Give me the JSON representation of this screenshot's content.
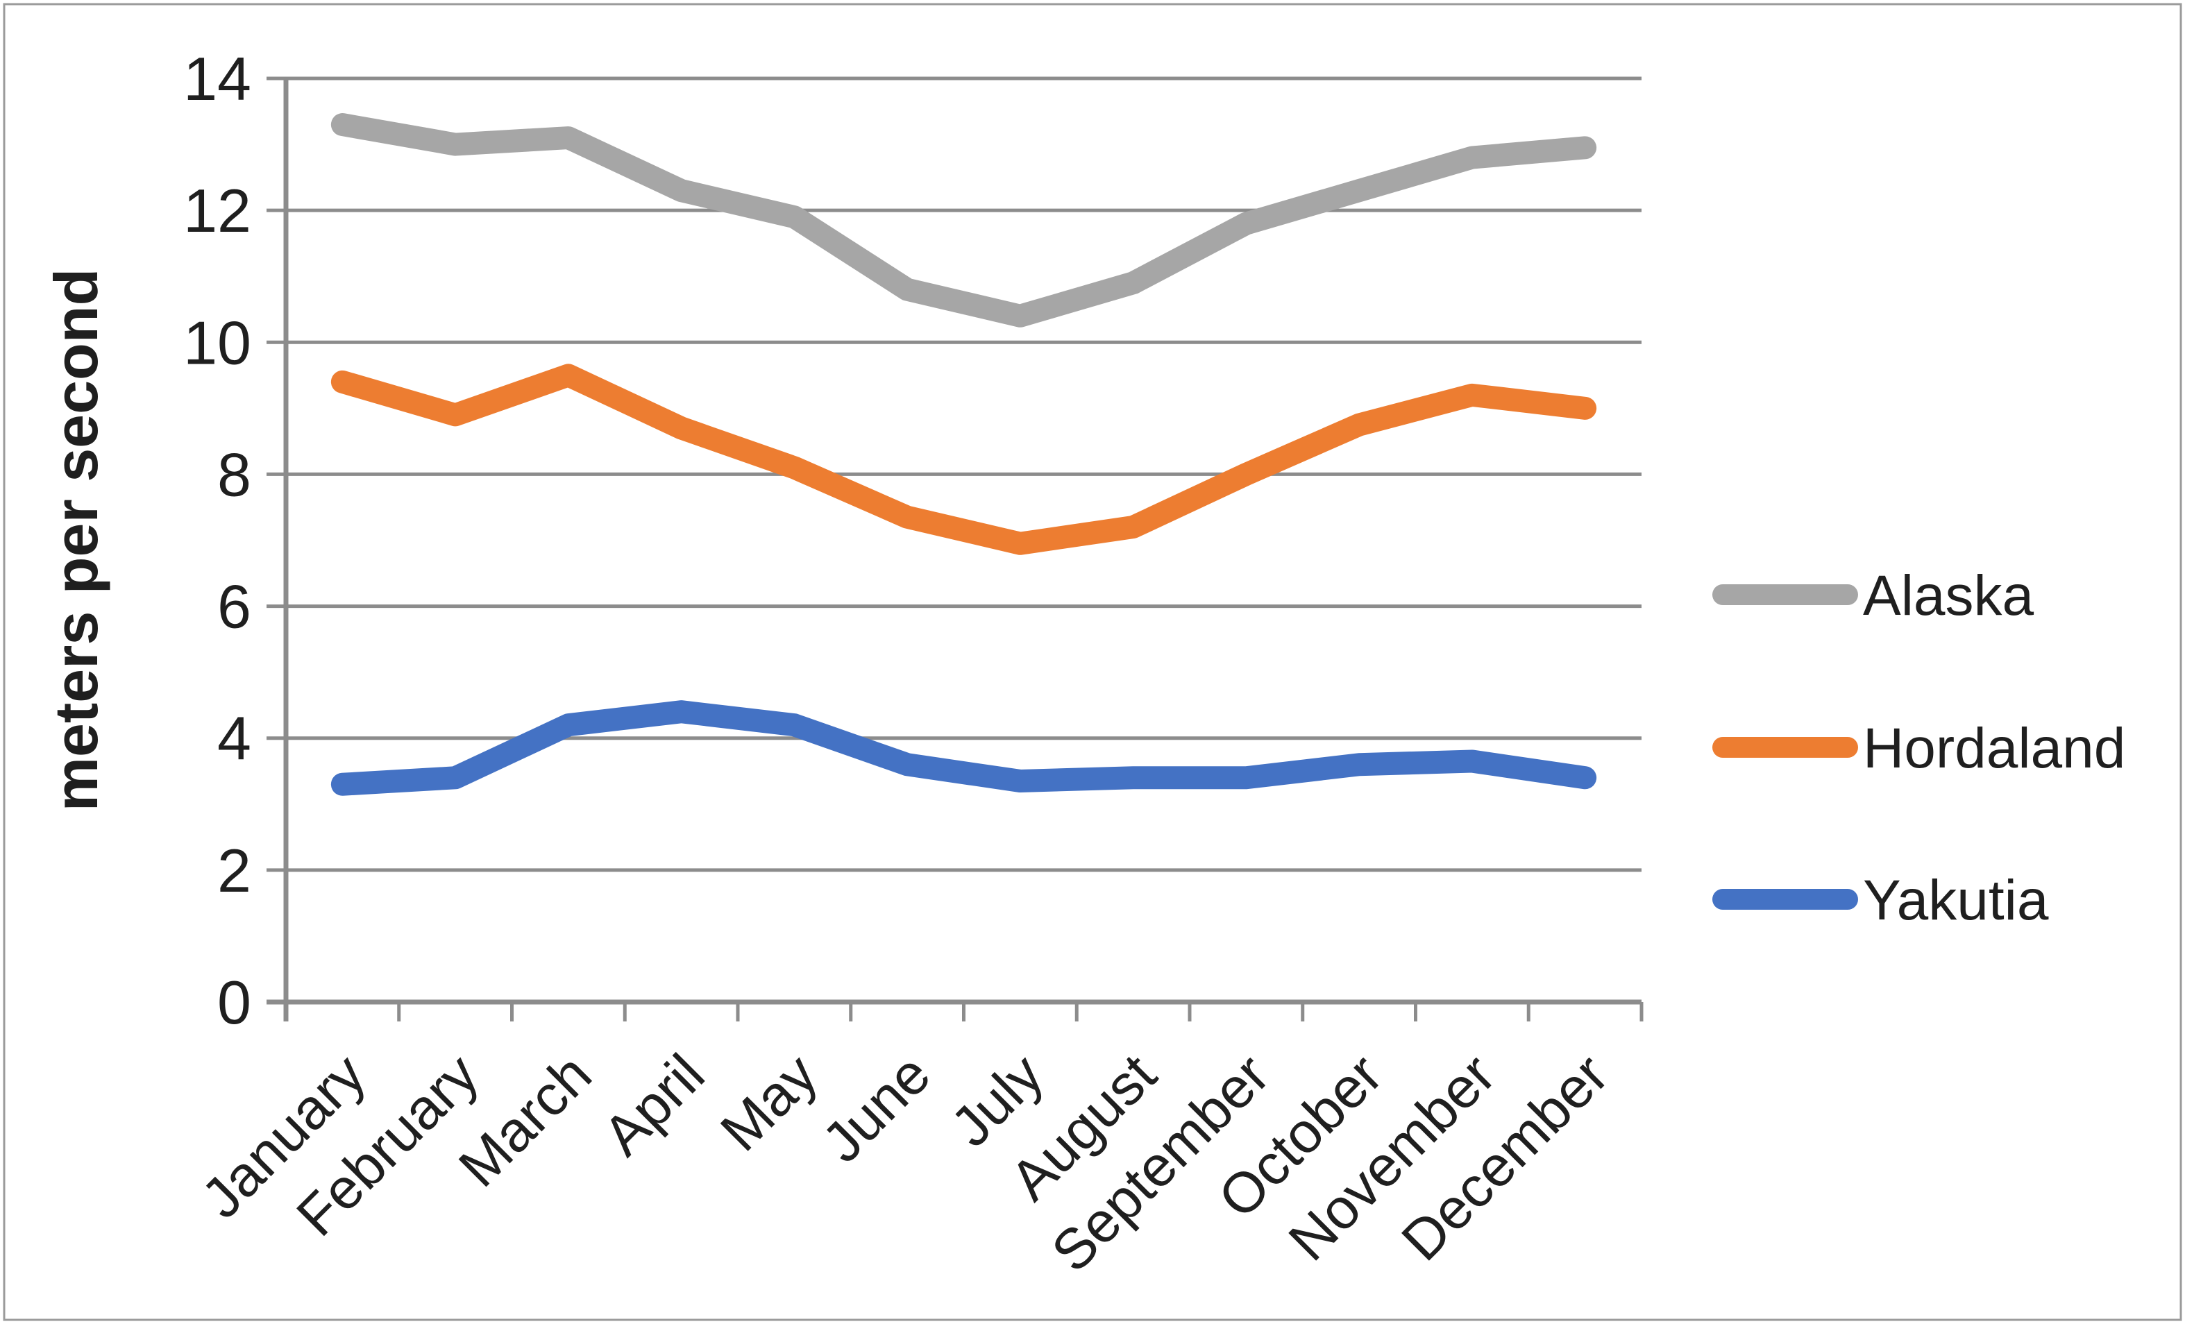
{
  "chart_data": {
    "type": "line",
    "title": "",
    "xlabel": "",
    "ylabel": "meters per second",
    "ylim": [
      0,
      14
    ],
    "yticks": [
      0,
      2,
      4,
      6,
      8,
      10,
      12,
      14
    ],
    "grid": true,
    "legend_position": "right",
    "categories": [
      "January",
      "February",
      "March",
      "April",
      "May",
      "June",
      "July",
      "August",
      "September",
      "October",
      "November",
      "December"
    ],
    "series": [
      {
        "name": "Alaska",
        "color": "#a6a6a6",
        "values": [
          13.3,
          13.0,
          13.1,
          12.3,
          11.9,
          10.8,
          10.4,
          10.9,
          11.8,
          12.3,
          12.8,
          12.95
        ]
      },
      {
        "name": "Hordaland",
        "color": "#ed7d31",
        "values": [
          9.4,
          8.9,
          9.5,
          8.7,
          8.1,
          7.35,
          6.95,
          7.2,
          8.0,
          8.75,
          9.2,
          9.0
        ]
      },
      {
        "name": "Yakutia",
        "color": "#4472c4",
        "values": [
          3.3,
          3.4,
          4.2,
          4.4,
          4.2,
          3.6,
          3.35,
          3.4,
          3.4,
          3.6,
          3.65,
          3.4
        ]
      }
    ]
  },
  "colors": {
    "background": "#ffffff",
    "border": "#9b9b9b",
    "grid": "#8c8c8c",
    "axis": "#8c8c8c",
    "text": "#1f1f1f"
  }
}
